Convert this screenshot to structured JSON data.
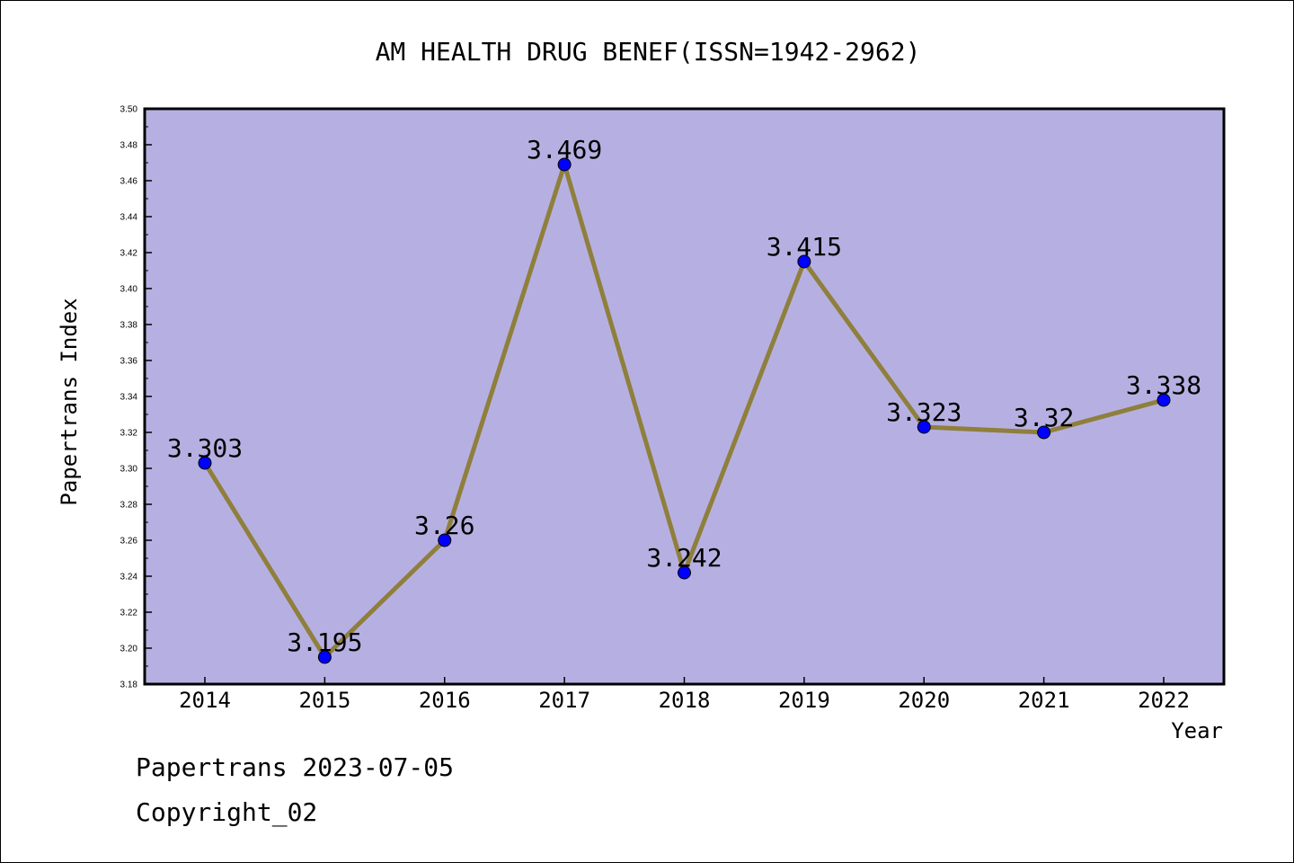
{
  "chart_data": {
    "type": "line",
    "title": "AM HEALTH DRUG BENEF(ISSN=1942-2962)",
    "xlabel": "Year",
    "ylabel": "Papertrans Index",
    "categories": [
      "2014",
      "2015",
      "2016",
      "2017",
      "2018",
      "2019",
      "2020",
      "2021",
      "2022"
    ],
    "series": [
      {
        "values": [
          3.303,
          3.195,
          3.26,
          3.469,
          3.242,
          3.415,
          3.323,
          3.32,
          3.338
        ],
        "labels": [
          "3.303",
          "3.195",
          "3.26",
          "3.469",
          "3.242",
          "3.415",
          "3.323",
          "3.32",
          "3.338"
        ]
      }
    ],
    "ylim": [
      3.18,
      3.5
    ],
    "yticks": [
      "3.18",
      "3.20",
      "3.22",
      "3.24",
      "3.26",
      "3.28",
      "3.30",
      "3.32",
      "3.34",
      "3.36",
      "3.38",
      "3.40",
      "3.42",
      "3.44",
      "3.46",
      "3.48",
      "3.50"
    ],
    "grid": false,
    "legend": "none",
    "colors": {
      "plot_background": "#b6b0e2",
      "line": "#8f7f3c",
      "marker": "#0000ff"
    }
  },
  "footer": {
    "date_text": "Papertrans 2023-07-05",
    "copyright_text": "Copyright_02"
  }
}
